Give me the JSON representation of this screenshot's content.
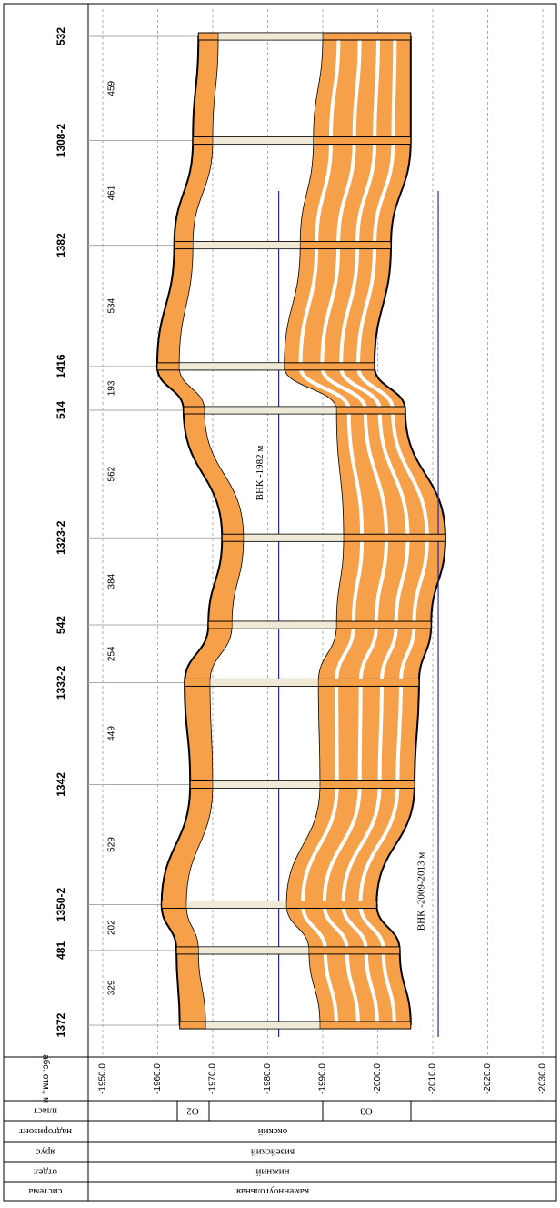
{
  "chart_data": {
    "type": "cross-section",
    "y_axis_label": "абс. отм., м",
    "xlim": [
      -1950,
      -2030
    ],
    "xticks": [
      {
        "value": -1950,
        "label": "-1950.0"
      },
      {
        "value": -1960,
        "label": "-1960.0"
      },
      {
        "value": -1970,
        "label": "-1970.0"
      },
      {
        "value": -1980,
        "label": "-1980.0"
      },
      {
        "value": -1990,
        "label": "-1990.0"
      },
      {
        "value": -2000,
        "label": "-2000.0"
      },
      {
        "value": -2010,
        "label": "-2010.0"
      },
      {
        "value": -2020,
        "label": "-2020.0"
      },
      {
        "value": -2030,
        "label": "-2030.0"
      }
    ],
    "wells": [
      {
        "name": "532",
        "top": -1967.4,
        "o2_bottom": -1971,
        "o3_top": -1990,
        "bottom": -2006
      },
      {
        "name": "1308-2",
        "top": -1966.4,
        "o2_bottom": -1970,
        "o3_top": -1988.3,
        "bottom": -2006
      },
      {
        "name": "1382",
        "top": -1963,
        "o2_bottom": -1966.4,
        "o3_top": -1985.9,
        "bottom": -2002.4
      },
      {
        "name": "1416",
        "top": -1959.9,
        "o2_bottom": -1963.9,
        "o3_top": -1983,
        "bottom": -1999.4
      },
      {
        "name": "514",
        "top": -1964.7,
        "o2_bottom": -1968.5,
        "o3_top": -1992.5,
        "bottom": -2005
      },
      {
        "name": "1323-2",
        "top": -1971.7,
        "o2_bottom": -1975.6,
        "o3_top": -1993.8,
        "bottom": -2012.3
      },
      {
        "name": "542",
        "top": -1969.2,
        "o2_bottom": -1973.5,
        "o3_top": -1992.5,
        "bottom": -2009.7
      },
      {
        "name": "1332-2",
        "top": -1964.9,
        "o2_bottom": -1969.5,
        "o3_top": -1989.2,
        "bottom": -2007.5
      },
      {
        "name": "1342",
        "top": -1965.9,
        "o2_bottom": -1970,
        "o3_top": -1989.5,
        "bottom": -2006.7
      },
      {
        "name": "1350-2",
        "top": -1960.7,
        "o2_bottom": -1965.2,
        "o3_top": -1983.4,
        "bottom": -1999.8
      },
      {
        "name": "481",
        "top": -1963.4,
        "o2_bottom": -1967.4,
        "o3_top": -1987.5,
        "bottom": -2004
      },
      {
        "name": "1372",
        "top": -1964,
        "o2_bottom": -1968.7,
        "o3_top": -1989.5,
        "bottom": -2006
      }
    ],
    "distances": [
      459,
      461,
      534,
      193,
      562,
      384,
      254,
      449,
      529,
      202,
      329
    ],
    "owc": [
      {
        "label": "ВНК -1982 м",
        "value": -1982
      },
      {
        "label": "ВНК -2009-2013 м",
        "value": -2011
      }
    ],
    "reservoir_color": "#f7a04a",
    "strat_table": [
      {
        "header": "пласт",
        "cells": [
          "O2",
          "O3"
        ]
      },
      {
        "header": "надгоризонт",
        "cells": [
          "окский"
        ]
      },
      {
        "header": "ярус",
        "cells": [
          "визейский"
        ]
      },
      {
        "header": "отдел",
        "cells": [
          "нижний"
        ]
      },
      {
        "header": "система",
        "cells": [
          "каменноугольная"
        ]
      }
    ]
  }
}
